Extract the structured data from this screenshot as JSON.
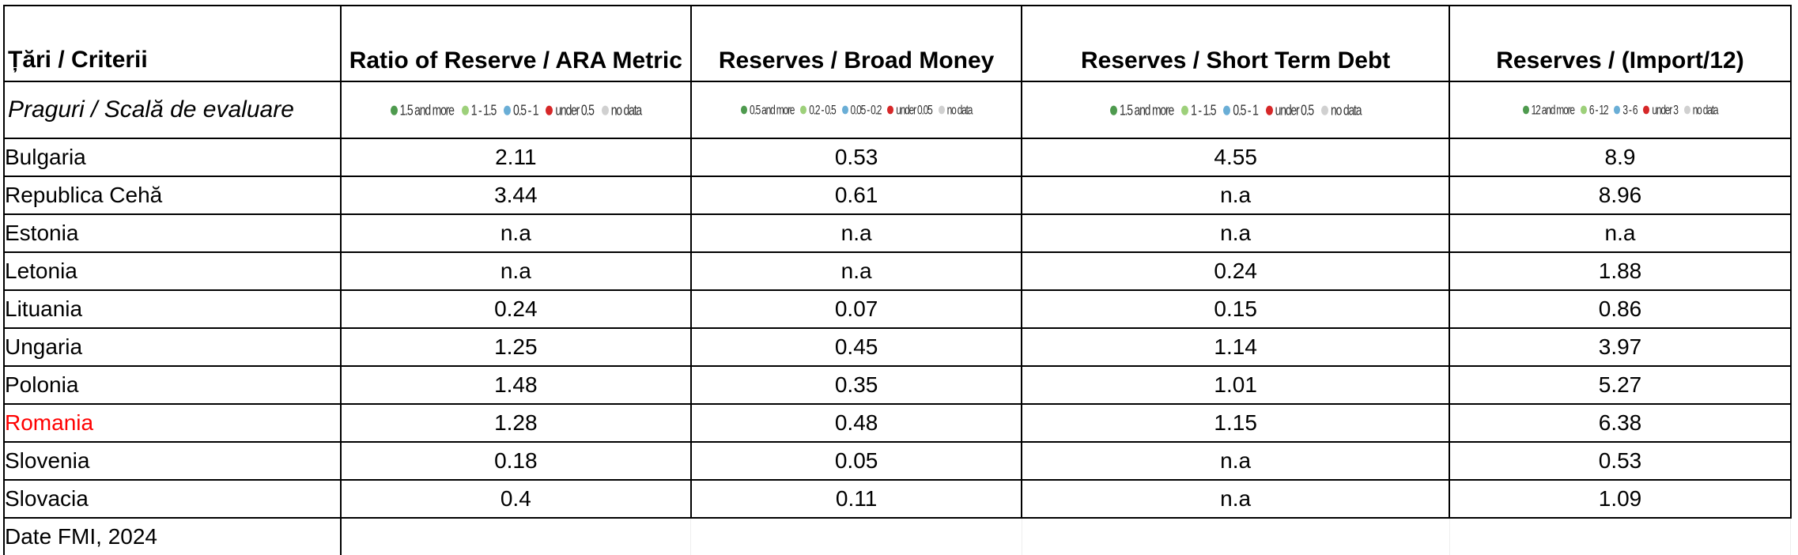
{
  "table": {
    "corner_header": "Țări / Criterii",
    "scale_label": "Praguri / Scală de evaluare",
    "columns": [
      {
        "title": "Ratio of Reserve / ARA Metric",
        "legend": [
          {
            "label": "1.5 and more",
            "color": "#4e9a4e"
          },
          {
            "label": "1 - 1.5",
            "color": "#9dd07a"
          },
          {
            "label": "0.5 - 1",
            "color": "#6aaed6"
          },
          {
            "label": "under 0.5",
            "color": "#d62728"
          },
          {
            "label": "no data",
            "color": "#d0d0d0"
          }
        ]
      },
      {
        "title": "Reserves / Broad Money",
        "legend": [
          {
            "label": "0.5 and more",
            "color": "#4e9a4e"
          },
          {
            "label": "0.2 - 0.5",
            "color": "#9dd07a"
          },
          {
            "label": "0.05 - 0.2",
            "color": "#6aaed6"
          },
          {
            "label": "under 0.05",
            "color": "#d62728"
          },
          {
            "label": "no data",
            "color": "#d0d0d0"
          }
        ]
      },
      {
        "title": "Reserves / Short Term Debt",
        "legend": [
          {
            "label": "1.5 and more",
            "color": "#4e9a4e"
          },
          {
            "label": "1 - 1.5",
            "color": "#9dd07a"
          },
          {
            "label": "0.5 - 1",
            "color": "#6aaed6"
          },
          {
            "label": "under 0.5",
            "color": "#d62728"
          },
          {
            "label": "no data",
            "color": "#d0d0d0"
          }
        ]
      },
      {
        "title": "Reserves / (Import/12)",
        "legend": [
          {
            "label": "12 and more",
            "color": "#4e9a4e"
          },
          {
            "label": "6 - 12",
            "color": "#9dd07a"
          },
          {
            "label": "3 - 6",
            "color": "#6aaed6"
          },
          {
            "label": "under 3",
            "color": "#d62728"
          },
          {
            "label": "no data",
            "color": "#d0d0d0"
          }
        ]
      }
    ],
    "rows": [
      {
        "country": "Bulgaria",
        "values": [
          "2.11",
          "0.53",
          "4.55",
          "8.9"
        ]
      },
      {
        "country": "Republica Cehă",
        "values": [
          "3.44",
          "0.61",
          "n.a",
          "8.96"
        ]
      },
      {
        "country": "Estonia",
        "values": [
          "n.a",
          "n.a",
          "n.a",
          "n.a"
        ]
      },
      {
        "country": "Letonia",
        "values": [
          "n.a",
          "n.a",
          "0.24",
          "1.88"
        ]
      },
      {
        "country": "Lituania",
        "values": [
          "0.24",
          "0.07",
          "0.15",
          "0.86"
        ]
      },
      {
        "country": "Ungaria",
        "values": [
          "1.25",
          "0.45",
          "1.14",
          "3.97"
        ]
      },
      {
        "country": "Polonia",
        "values": [
          "1.48",
          "0.35",
          "1.01",
          "5.27"
        ]
      },
      {
        "country": "Romania",
        "values": [
          "1.28",
          "0.48",
          "1.15",
          "6.38"
        ],
        "highlight_color": "#ff0000"
      },
      {
        "country": "Slovenia",
        "values": [
          "0.18",
          "0.05",
          "n.a",
          "0.53"
        ]
      },
      {
        "country": "Slovacia",
        "values": [
          "0.4",
          "0.11",
          "n.a",
          "1.09"
        ]
      }
    ],
    "footer": "Date FMI, 2024"
  }
}
